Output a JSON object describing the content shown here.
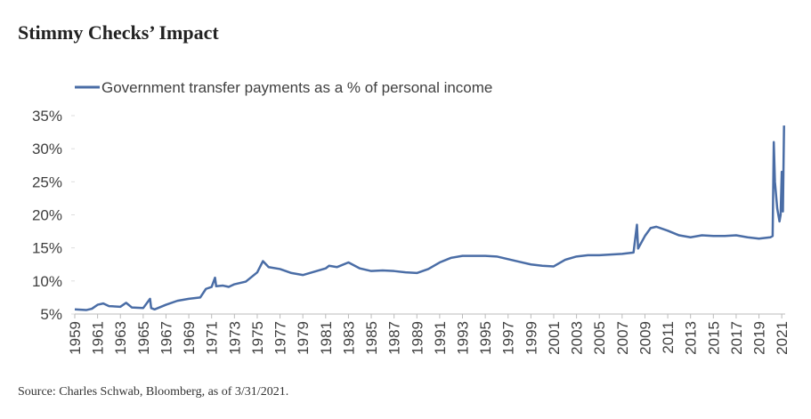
{
  "chart_data": {
    "type": "line",
    "title": "Stimmy Checks’ Impact",
    "source": "Source: Charles Schwab, Bloomberg, as of 3/31/2021.",
    "series": [
      {
        "name": "Government transfer payments as a % of personal income",
        "color": "#4a6da6",
        "x": [
          1959,
          1960,
          1960.5,
          1961,
          1961.5,
          1962,
          1963,
          1963.5,
          1964,
          1965,
          1965.6,
          1965.7,
          1966,
          1967,
          1968,
          1969,
          1970,
          1970.5,
          1971,
          1971.3,
          1971.4,
          1972,
          1972.5,
          1973,
          1974,
          1975,
          1975.5,
          1976,
          1977,
          1978,
          1979,
          1980,
          1981,
          1981.3,
          1982,
          1983,
          1984,
          1985,
          1986,
          1987,
          1988,
          1989,
          1990,
          1991,
          1992,
          1993,
          1994,
          1995,
          1996,
          1997,
          1998,
          1999,
          2000,
          2001,
          2002,
          2003,
          2004,
          2005,
          2006,
          2007,
          2008,
          2008.3,
          2008.4,
          2009,
          2009.5,
          2010,
          2011,
          2012,
          2013,
          2014,
          2015,
          2016,
          2017,
          2018,
          2019,
          2020,
          2020.2,
          2020.3,
          2020.4,
          2020.6,
          2020.8,
          2020.9,
          2021,
          2021.1,
          2021.2
        ],
        "values": [
          5.7,
          5.6,
          5.8,
          6.4,
          6.6,
          6.2,
          6.1,
          6.7,
          6.0,
          5.9,
          7.3,
          5.9,
          5.7,
          6.4,
          7.0,
          7.3,
          7.5,
          8.8,
          9.1,
          10.5,
          9.2,
          9.3,
          9.1,
          9.5,
          9.9,
          11.3,
          13.0,
          12.1,
          11.8,
          11.2,
          10.9,
          11.4,
          11.9,
          12.3,
          12.1,
          12.8,
          11.9,
          11.5,
          11.6,
          11.5,
          11.3,
          11.2,
          11.8,
          12.8,
          13.5,
          13.8,
          13.8,
          13.8,
          13.7,
          13.3,
          12.9,
          12.5,
          12.3,
          12.2,
          13.2,
          13.7,
          13.9,
          13.9,
          14.0,
          14.1,
          14.3,
          18.5,
          14.9,
          16.8,
          18.0,
          18.2,
          17.6,
          16.9,
          16.6,
          16.9,
          16.8,
          16.8,
          16.9,
          16.6,
          16.4,
          16.6,
          16.8,
          31.0,
          25.0,
          21.0,
          19.0,
          20.0,
          26.5,
          20.5,
          33.5
        ]
      }
    ],
    "xlim": [
      1959,
      2021.3
    ],
    "xticks": [
      1959,
      1961,
      1963,
      1965,
      1967,
      1969,
      1971,
      1973,
      1975,
      1977,
      1979,
      1981,
      1983,
      1985,
      1987,
      1989,
      1991,
      1993,
      1995,
      1997,
      1999,
      2001,
      2003,
      2005,
      2007,
      2009,
      2011,
      2013,
      2015,
      2017,
      2019,
      2021
    ],
    "ylim": [
      5,
      35
    ],
    "yticks": [
      {
        "value": 5,
        "label": "5%"
      },
      {
        "value": 10,
        "label": "10%"
      },
      {
        "value": 15,
        "label": "15%"
      },
      {
        "value": 20,
        "label": "20%"
      },
      {
        "value": 25,
        "label": "25%"
      },
      {
        "value": 30,
        "label": "30%"
      },
      {
        "value": 35,
        "label": "35%"
      }
    ],
    "legend": "top-left"
  }
}
